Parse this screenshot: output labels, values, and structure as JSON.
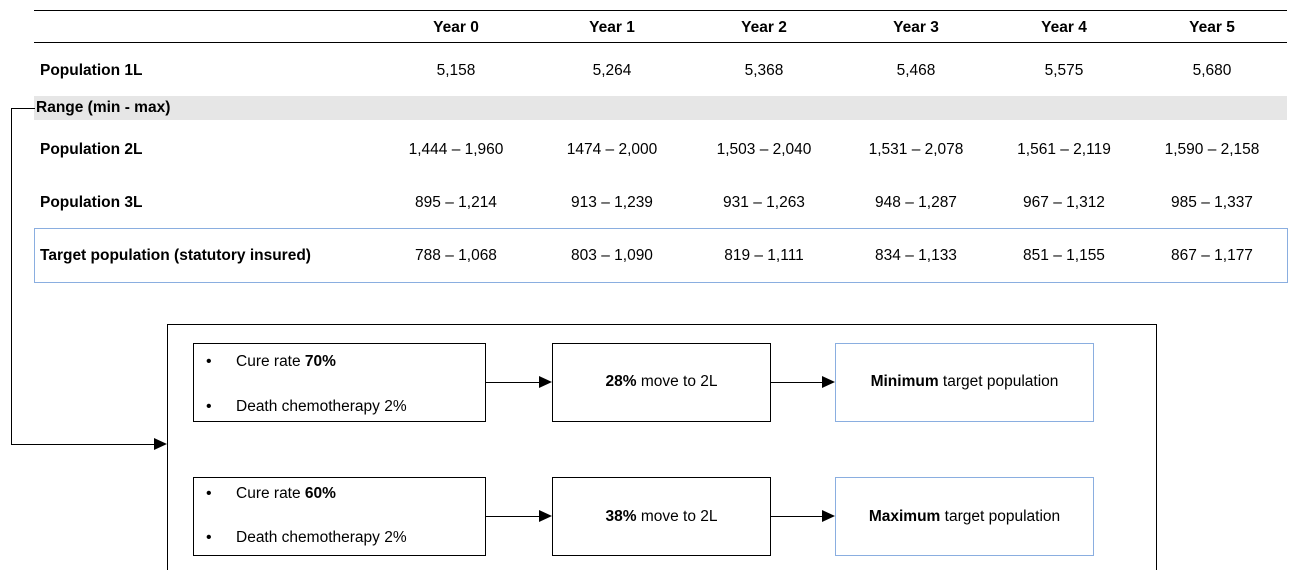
{
  "table": {
    "headers": [
      "Year 0",
      "Year 1",
      "Year 2",
      "Year 3",
      "Year 4",
      "Year 5"
    ],
    "population_1l": {
      "label": "Population 1L",
      "values": [
        "5,158",
        "5,264",
        "5,368",
        "5,468",
        "5,575",
        "5,680"
      ]
    },
    "range_label": "Range (min - max)",
    "population_2l": {
      "label": "Population 2L",
      "values": [
        "1,444 – 1,960",
        "1474 – 2,000",
        "1,503 – 2,040",
        "1,531 – 2,078",
        "1,561 – 2,119",
        "1,590 – 2,158"
      ]
    },
    "population_3l": {
      "label": "Population 3L",
      "values": [
        "895 – 1,214",
        "913 – 1,239",
        "931 – 1,263",
        "948 – 1,287",
        "967 – 1,312",
        "985 – 1,337"
      ]
    },
    "target_population": {
      "label": "Target population (statutory insured)",
      "values": [
        "788 – 1,068",
        "803 – 1,090",
        "819 – 1,111",
        "834 – 1,133",
        "851 – 1,155",
        "867 – 1,177"
      ]
    }
  },
  "flow": {
    "min": {
      "bullet1_prefix": "Cure rate ",
      "bullet1_bold": "70%",
      "bullet2": "Death chemotherapy 2%",
      "move_bold": "28%",
      "move_rest": " move to 2L",
      "result_bold": "Minimum",
      "result_rest": " target population"
    },
    "max": {
      "bullet1_prefix": "Cure rate ",
      "bullet1_bold": "60%",
      "bullet2": "Death chemotherapy 2%",
      "move_bold": "38%",
      "move_rest": " move to 2L",
      "result_bold": "Maximum",
      "result_rest": " target population"
    },
    "bullet_char": "•"
  }
}
